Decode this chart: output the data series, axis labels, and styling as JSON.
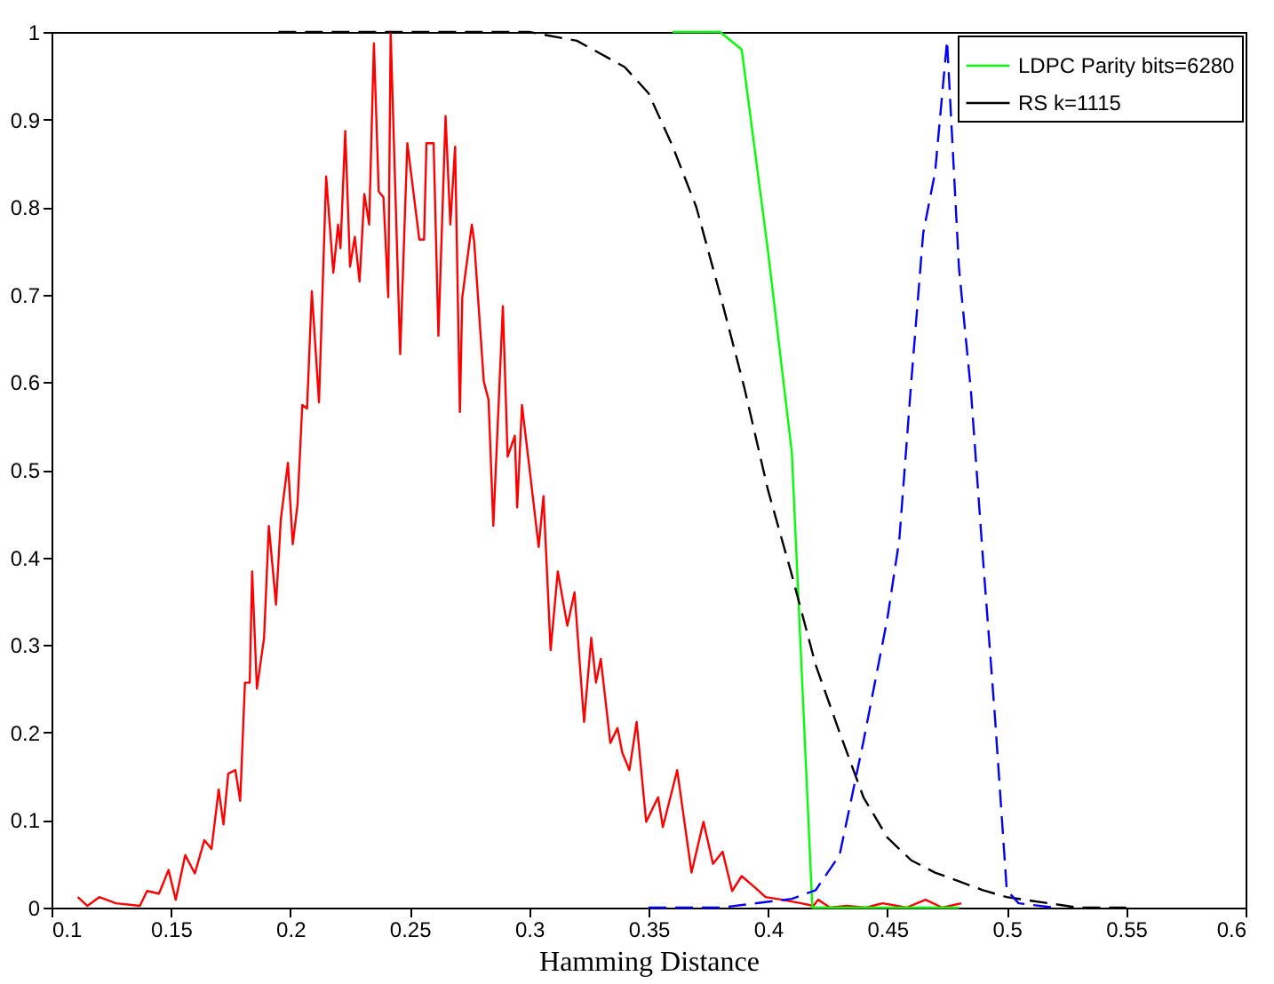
{
  "chart_data": {
    "type": "line",
    "xlabel": "Hamming Distance",
    "xlim": [
      0.1,
      0.6
    ],
    "xticks": [
      0.1,
      0.15,
      0.2,
      0.25,
      0.3,
      0.35,
      0.4,
      0.45,
      0.5,
      0.55,
      0.6
    ],
    "ylim": [
      0,
      1
    ],
    "yticks": [
      0,
      0.1,
      0.2,
      0.3,
      0.4,
      0.5,
      0.6,
      0.7,
      0.8,
      0.9,
      1
    ],
    "grid": false,
    "legend": "top right",
    "series": [
      {
        "color": "#ff0000",
        "line_style": "solid",
        "x": [
          0.111,
          0.115,
          0.12,
          0.127,
          0.137,
          0.14,
          0.145,
          0.149,
          0.152,
          0.156,
          0.16,
          0.164,
          0.167,
          0.17,
          0.172,
          0.174,
          0.177,
          0.179,
          0.181,
          0.183,
          0.184,
          0.186,
          0.189,
          0.191,
          0.194,
          0.196,
          0.199,
          0.201,
          0.203,
          0.205,
          0.207,
          0.209,
          0.212,
          0.215,
          0.218,
          0.22,
          0.221,
          0.223,
          0.225,
          0.227,
          0.229,
          0.231,
          0.233,
          0.235,
          0.237,
          0.239,
          0.241,
          0.242,
          0.246,
          0.249,
          0.254,
          0.256,
          0.257,
          0.26,
          0.262,
          0.265,
          0.267,
          0.269,
          0.271,
          0.272,
          0.276,
          0.277,
          0.281,
          0.283,
          0.285,
          0.289,
          0.291,
          0.294,
          0.295,
          0.297,
          0.3,
          0.304,
          0.306,
          0.309,
          0.312,
          0.316,
          0.319,
          0.323,
          0.326,
          0.328,
          0.33,
          0.334,
          0.337,
          0.339,
          0.342,
          0.345,
          0.349,
          0.354,
          0.356,
          0.362,
          0.368,
          0.373,
          0.377,
          0.381,
          0.385,
          0.389,
          0.395,
          0.399,
          0.406,
          0.414,
          0.419,
          0.421,
          0.426,
          0.433,
          0.441,
          0.448,
          0.458,
          0.466,
          0.473,
          0.481
        ],
        "values": [
          0.012,
          0.002,
          0.012,
          0.005,
          0.002,
          0.019,
          0.016,
          0.043,
          0.009,
          0.06,
          0.039,
          0.077,
          0.067,
          0.135,
          0.095,
          0.153,
          0.157,
          0.122,
          0.257,
          0.257,
          0.384,
          0.25,
          0.308,
          0.436,
          0.346,
          0.443,
          0.508,
          0.415,
          0.46,
          0.574,
          0.57,
          0.704,
          0.577,
          0.835,
          0.725,
          0.78,
          0.753,
          0.887,
          0.732,
          0.766,
          0.715,
          0.815,
          0.78,
          0.987,
          0.818,
          0.811,
          0.697,
          1.0,
          0.632,
          0.873,
          0.763,
          0.763,
          0.873,
          0.873,
          0.653,
          0.904,
          0.78,
          0.869,
          0.566,
          0.697,
          0.78,
          0.76,
          0.601,
          0.58,
          0.436,
          0.687,
          0.515,
          0.539,
          0.457,
          0.574,
          0.505,
          0.412,
          0.47,
          0.294,
          0.384,
          0.322,
          0.36,
          0.212,
          0.308,
          0.257,
          0.284,
          0.188,
          0.205,
          0.177,
          0.157,
          0.212,
          0.098,
          0.126,
          0.092,
          0.157,
          0.04,
          0.098,
          0.05,
          0.064,
          0.019,
          0.036,
          0.022,
          0.012,
          0.009,
          0.005,
          0.002,
          0.009,
          0.0,
          0.002,
          0.0,
          0.005,
          0.0,
          0.009,
          0.0,
          0.005
        ]
      },
      {
        "name": "LDPC Parity bits=6280",
        "color": "#00ff00",
        "line_style": "solid",
        "x": [
          0.36,
          0.38,
          0.389,
          0.4,
          0.41,
          0.4186,
          0.43,
          0.44,
          0.45,
          0.46,
          0.47,
          0.48
        ],
        "values": [
          1,
          1,
          0.98,
          0.75,
          0.52,
          0,
          0,
          0,
          0,
          0,
          0,
          0
        ]
      },
      {
        "name": "RS k=1115",
        "color": "#000000",
        "line_style": "dashed",
        "x": [
          0.195,
          0.3,
          0.32,
          0.34,
          0.35,
          0.36,
          0.37,
          0.38,
          0.39,
          0.4,
          0.41,
          0.42,
          0.43,
          0.44,
          0.45,
          0.46,
          0.47,
          0.48,
          0.49,
          0.5,
          0.52,
          0.53,
          0.55
        ],
        "values": [
          1,
          1,
          0.99,
          0.96,
          0.93,
          0.87,
          0.8,
          0.7,
          0.595,
          0.477,
          0.38,
          0.277,
          0.2,
          0.126,
          0.08,
          0.054,
          0.04,
          0.03,
          0.02,
          0.012,
          0.004,
          0,
          0
        ]
      },
      {
        "color": "#0000ff",
        "line_style": "dashed",
        "x": [
          0.35,
          0.38,
          0.41,
          0.42,
          0.43,
          0.44,
          0.45,
          0.455,
          0.46,
          0.465,
          0.47,
          0.475,
          0.48,
          0.485,
          0.49,
          0.495,
          0.5,
          0.505,
          0.52
        ],
        "values": [
          0,
          0,
          0.01,
          0.02,
          0.06,
          0.19,
          0.33,
          0.42,
          0.6,
          0.77,
          0.84,
          0.99,
          0.73,
          0.59,
          0.4,
          0.22,
          0.02,
          0.005,
          0
        ]
      }
    ]
  }
}
